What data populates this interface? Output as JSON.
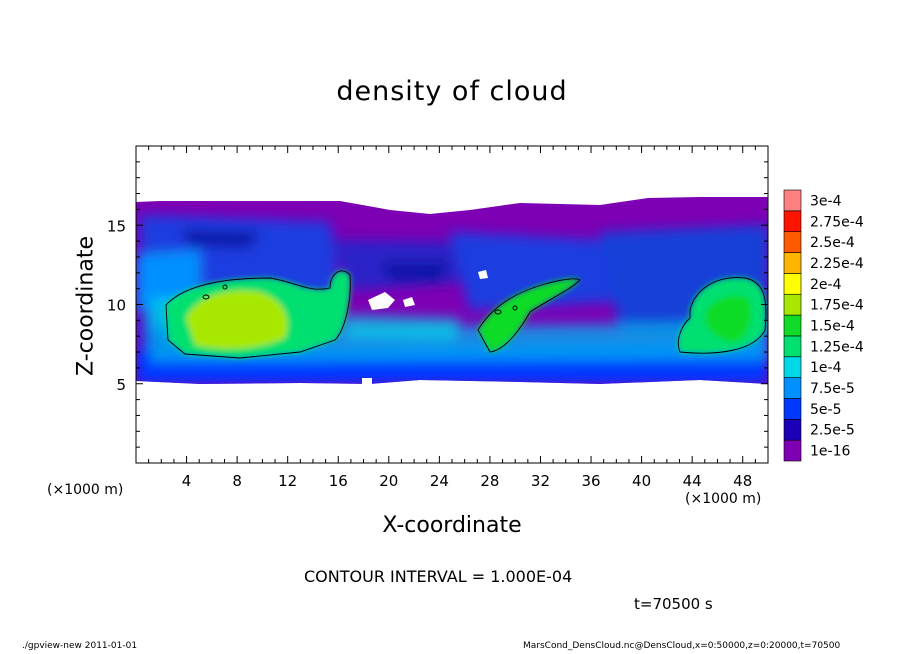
{
  "chart_data": {
    "type": "heatmap",
    "title": "density of cloud",
    "xlabel": "X-coordinate",
    "ylabel": "Z-coordinate",
    "x_unit_left": "(×1000 m)",
    "x_unit_right": "(×1000 m)",
    "xlim": [
      0,
      50
    ],
    "ylim": [
      0,
      20
    ],
    "xticks": [
      4,
      8,
      12,
      16,
      20,
      24,
      28,
      32,
      36,
      40,
      44,
      48
    ],
    "xtick_labels": [
      "4",
      "8",
      "12",
      "16",
      "20",
      "24",
      "28",
      "32",
      "36",
      "40",
      "44",
      "48"
    ],
    "yticks": [
      5,
      10,
      15
    ],
    "ytick_labels": [
      "5",
      "10",
      "15"
    ],
    "colorbar": {
      "levels": [
        "1e-16",
        "2.5e-5",
        "5e-5",
        "7.5e-5",
        "1e-4",
        "1.25e-4",
        "1.5e-4",
        "1.75e-4",
        "2e-4",
        "2.25e-4",
        "2.5e-4",
        "2.75e-4",
        "3e-4"
      ],
      "colors": [
        "#7d00b4",
        "#1a00b8",
        "#0038ff",
        "#0090ff",
        "#00d8e8",
        "#00e070",
        "#10dc28",
        "#a8e800",
        "#ffff00",
        "#ffb400",
        "#ff5a00",
        "#ff1400",
        "#ff8080"
      ],
      "placement": "right"
    },
    "cloud_layer": {
      "z_bottom": 5,
      "z_top": 16.5
    },
    "contour_interval": "1.000E-04",
    "contour_level": 0.0001,
    "time": "t=70500 s"
  },
  "annotations": {
    "contour_note": "CONTOUR INTERVAL = 1.000E-04",
    "time": "t=70500 s",
    "footer_left": "./gpview-new   2011-01-01",
    "footer_right": "MarsCond_DensCloud.nc@DensCloud,x=0:50000,z=0:20000,t=70500"
  }
}
